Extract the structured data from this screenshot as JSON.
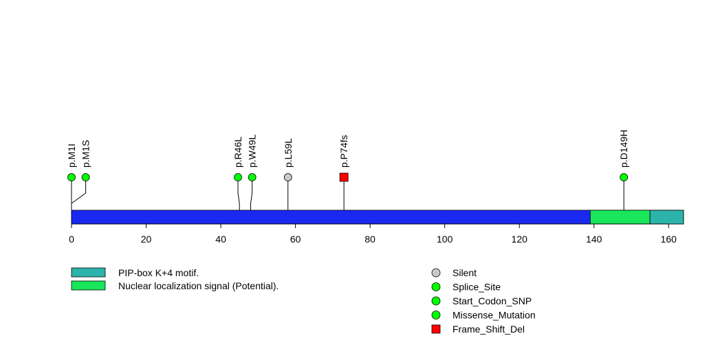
{
  "chart_data": {
    "type": "lollipop",
    "protein_length": 164,
    "xlim": [
      0,
      164
    ],
    "x_ticks": [
      0,
      20,
      40,
      60,
      80,
      100,
      120,
      140,
      160
    ],
    "backbone_color": "#1a28f0",
    "domains": [
      {
        "name": "Nuclear localization signal (Potential).",
        "start": 139,
        "end": 155,
        "color": "#19e65a"
      },
      {
        "name": "PIP-box K+4 motif.",
        "start": 155,
        "end": 164,
        "color": "#2db4aa"
      }
    ],
    "mutations": [
      {
        "label": "p.M1I",
        "position": 0,
        "display_position": 0,
        "type": "Start_Codon_SNP"
      },
      {
        "label": "p.M1S",
        "position": 0,
        "display_position": 3.8,
        "type": "Start_Codon_SNP"
      },
      {
        "label": "p.R46L",
        "position": 45,
        "display_position": 44.6,
        "type": "Missense_Mutation"
      },
      {
        "label": "p.W49L",
        "position": 48,
        "display_position": 48.4,
        "type": "Missense_Mutation"
      },
      {
        "label": "p.L59L",
        "position": 58,
        "display_position": 58,
        "type": "Silent"
      },
      {
        "label": "p.P74fs",
        "position": 73,
        "display_position": 73,
        "type": "Frame_Shift_Del"
      },
      {
        "label": "p.D149H",
        "position": 148,
        "display_position": 148,
        "type": "Missense_Mutation"
      }
    ],
    "legend_domains": [
      {
        "name": "PIP-box K+4 motif.",
        "color": "#2db4aa"
      },
      {
        "name": "Nuclear localization signal (Potential).",
        "color": "#19e65a"
      }
    ],
    "legend_mutations": [
      {
        "name": "Silent",
        "shape": "circle",
        "color": "#c8c8c8"
      },
      {
        "name": "Splice_Site",
        "shape": "circle",
        "color": "#00ff00"
      },
      {
        "name": "Start_Codon_SNP",
        "shape": "circle",
        "color": "#00ff00"
      },
      {
        "name": "Missense_Mutation",
        "shape": "circle",
        "color": "#00ff00"
      },
      {
        "name": "Frame_Shift_Del",
        "shape": "square",
        "color": "#ff0000"
      }
    ],
    "type_colors": {
      "Silent": "#c8c8c8",
      "Splice_Site": "#00ff00",
      "Start_Codon_SNP": "#00ff00",
      "Missense_Mutation": "#00ff00",
      "Frame_Shift_Del": "#ff0000"
    },
    "type_shapes": {
      "Silent": "circle",
      "Splice_Site": "circle",
      "Start_Codon_SNP": "circle",
      "Missense_Mutation": "circle",
      "Frame_Shift_Del": "square"
    }
  }
}
